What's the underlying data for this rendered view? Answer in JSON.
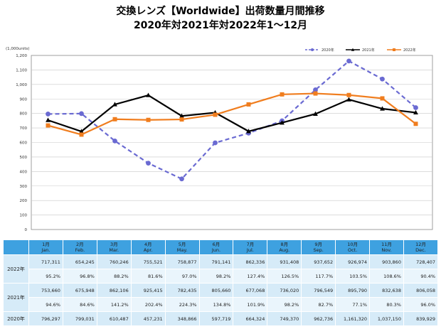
{
  "title": {
    "line1": "交換レンズ【Worldwide】出荷数量月間推移",
    "line2": "2020年対2021年対2022年1～12月"
  },
  "chart_data": {
    "type": "line",
    "unit_label": "(1,000units)",
    "ylim": [
      0,
      1200
    ],
    "yticks": [
      "0",
      "100",
      "200",
      "300",
      "400",
      "500",
      "600",
      "700",
      "800",
      "900",
      "1,000",
      "1,100",
      "1,200"
    ],
    "grid": true,
    "legend_position": "top-right",
    "categories": [
      "1月",
      "2月",
      "3月",
      "4月",
      "5月",
      "6月",
      "7月",
      "8月",
      "9月",
      "10月",
      "11月",
      "12月"
    ],
    "series": [
      {
        "name": "2020年",
        "color": "#6a6ad2",
        "style": "dashed",
        "marker": "circle",
        "values": [
          796.297,
          799.031,
          610.487,
          457.231,
          348.866,
          597.719,
          664.324,
          749.37,
          962.736,
          1161.32,
          1037.15,
          839.929
        ]
      },
      {
        "name": "2021年",
        "color": "#000000",
        "style": "solid",
        "marker": "triangle",
        "values": [
          753.66,
          675.948,
          862.106,
          925.415,
          782.435,
          805.66,
          677.068,
          736.02,
          796.549,
          895.79,
          832.638,
          806.058
        ]
      },
      {
        "name": "2022年",
        "color": "#f07d1e",
        "style": "solid",
        "marker": "square",
        "values": [
          717.311,
          654.245,
          760.246,
          755.521,
          758.877,
          791.141,
          862.336,
          931.408,
          937.652,
          926.974,
          903.86,
          728.407
        ]
      }
    ]
  },
  "table": {
    "months": [
      {
        "jp": "1月",
        "en": "Jan."
      },
      {
        "jp": "2月",
        "en": "Feb."
      },
      {
        "jp": "3月",
        "en": "Mar."
      },
      {
        "jp": "4月",
        "en": "Apr."
      },
      {
        "jp": "5月",
        "en": "May."
      },
      {
        "jp": "6月",
        "en": "Jun."
      },
      {
        "jp": "7月",
        "en": "Jul."
      },
      {
        "jp": "8月",
        "en": "Aug."
      },
      {
        "jp": "9月",
        "en": "Sep."
      },
      {
        "jp": "10月",
        "en": "Oct."
      },
      {
        "jp": "11月",
        "en": "Nov."
      },
      {
        "jp": "12月",
        "en": "Dec."
      }
    ],
    "rows": [
      {
        "label": "2022年",
        "values": [
          "717,311",
          "654,245",
          "760,246",
          "755,521",
          "758,877",
          "791,141",
          "862,336",
          "931,408",
          "937,652",
          "926,974",
          "903,860",
          "728,407"
        ],
        "ratios": [
          "95.2%",
          "96.8%",
          "88.2%",
          "81.6%",
          "97.0%",
          "98.2%",
          "127.4%",
          "126.5%",
          "117.7%",
          "103.5%",
          "108.6%",
          "90.4%"
        ]
      },
      {
        "label": "2021年",
        "values": [
          "753,660",
          "675,948",
          "862,106",
          "925,415",
          "782,435",
          "805,660",
          "677,068",
          "736,020",
          "796,549",
          "895,790",
          "832,638",
          "806,058"
        ],
        "ratios": [
          "94.6%",
          "84.6%",
          "141.2%",
          "202.4%",
          "224.3%",
          "134.8%",
          "101.9%",
          "98.2%",
          "82.7%",
          "77.1%",
          "80.3%",
          "96.0%"
        ]
      },
      {
        "label": "2020年",
        "values": [
          "796,297",
          "799,031",
          "610,487",
          "457,231",
          "348,866",
          "597,719",
          "664,324",
          "749,370",
          "962,736",
          "1,161,320",
          "1,037,150",
          "839,929"
        ],
        "ratios": []
      }
    ]
  }
}
